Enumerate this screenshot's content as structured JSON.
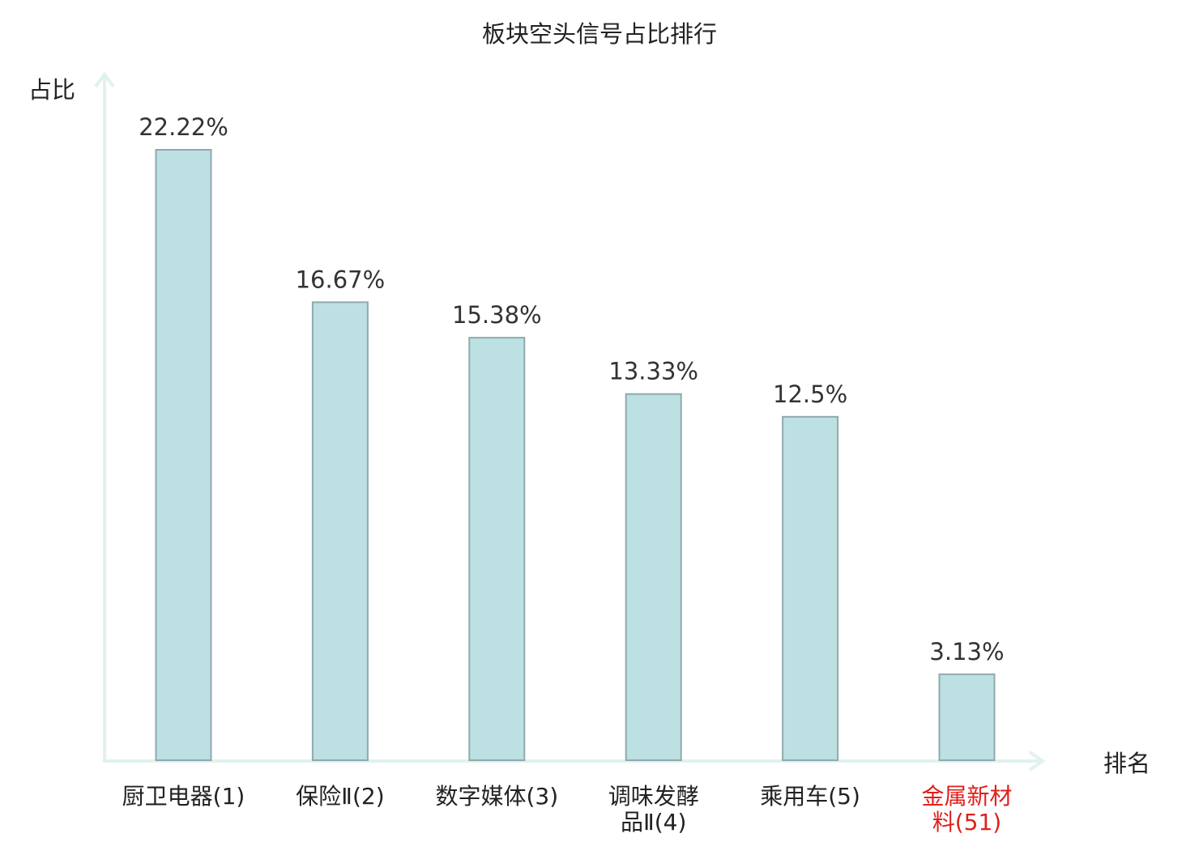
{
  "chart_data": {
    "type": "bar",
    "title": "板块空头信号占比排行",
    "ylabel": "占比",
    "xlabel": "排名",
    "categories": [
      [
        "厨卫电器(1)"
      ],
      [
        "保险Ⅱ(2)"
      ],
      [
        "数字媒体(3)"
      ],
      [
        "调味发酵",
        "品Ⅱ(4)"
      ],
      [
        "乘用车(5)"
      ],
      [
        "金属新材",
        "料(51)"
      ]
    ],
    "values": [
      22.22,
      16.67,
      15.38,
      13.33,
      12.5,
      3.13
    ],
    "value_labels": [
      "22.22%",
      "16.67%",
      "15.38%",
      "13.33%",
      "12.5%",
      "3.13%"
    ],
    "highlight_index": 5,
    "ylim": [
      0,
      22.22
    ],
    "grid": false,
    "colors": {
      "bar_fill": "#bde0e2",
      "bar_stroke": "#8faaad",
      "axis": "#dff2ef",
      "text": "#333333",
      "label": "#222222",
      "highlight": "#e0201b"
    }
  }
}
